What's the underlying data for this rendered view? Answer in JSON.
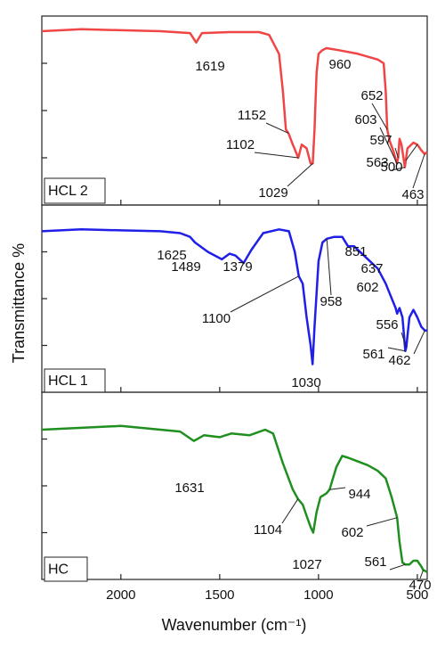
{
  "chart_data": [
    {
      "type": "line",
      "xlim": [
        2400,
        450
      ],
      "ylim": [
        0,
        100
      ],
      "yticks": [
        25,
        50,
        75
      ],
      "annotations": [
        1619,
        960,
        1152,
        652,
        603,
        1102,
        597,
        563,
        500,
        1029,
        463
      ],
      "x": [
        2400,
        2200,
        2000,
        1800,
        1650,
        1619,
        1590,
        1450,
        1300,
        1250,
        1200,
        1180,
        1165,
        1152,
        1130,
        1102,
        1085,
        1060,
        1040,
        1029,
        1020,
        1010,
        1000,
        980,
        960,
        900,
        800,
        700,
        670,
        660,
        652,
        640,
        620,
        603,
        597,
        590,
        580,
        563,
        550,
        520,
        500,
        480,
        463,
        450
      ],
      "series": [
        {
          "name": "HCL 2",
          "color": "#f04545",
          "values": [
            92,
            93,
            92.5,
            92,
            91,
            86,
            91,
            91.5,
            91.5,
            90,
            80,
            60,
            40,
            38,
            32,
            25,
            32,
            30,
            22,
            22,
            40,
            70,
            80,
            82,
            83,
            82,
            80,
            77,
            75,
            60,
            40,
            34,
            28,
            22,
            25,
            35,
            32,
            20,
            30,
            33,
            32,
            29,
            27,
            28
          ]
        }
      ]
    },
    {
      "type": "line",
      "xlim": [
        2400,
        450
      ],
      "ylim": [
        0,
        100
      ],
      "yticks": [
        25,
        50,
        75
      ],
      "ylabel": "Transmittance %",
      "annotations": [
        1625,
        1489,
        1379,
        958,
        851,
        637,
        602,
        1100,
        556,
        1030,
        561,
        462
      ],
      "x": [
        2400,
        2200,
        2000,
        1800,
        1700,
        1650,
        1625,
        1560,
        1489,
        1450,
        1420,
        1379,
        1340,
        1280,
        1200,
        1150,
        1120,
        1100,
        1080,
        1060,
        1040,
        1030,
        1020,
        1000,
        980,
        958,
        920,
        880,
        851,
        820,
        760,
        700,
        660,
        637,
        610,
        602,
        590,
        575,
        561,
        556,
        540,
        520,
        500,
        480,
        462,
        450
      ],
      "series": [
        {
          "name": "HCL 1",
          "color": "#1f1fe8",
          "values": [
            86,
            87,
            86.5,
            86,
            85,
            83,
            80,
            75,
            71,
            74,
            73,
            69,
            76,
            85,
            87,
            86,
            75,
            62,
            58,
            40,
            25,
            15,
            35,
            70,
            80,
            82,
            83,
            83,
            78,
            78,
            72,
            66,
            58,
            52,
            45,
            42,
            45,
            40,
            22,
            24,
            40,
            44,
            40,
            35,
            33,
            33
          ]
        }
      ]
    },
    {
      "type": "line",
      "xlim": [
        2400,
        450
      ],
      "ylim": [
        0,
        100
      ],
      "yticks": [
        25,
        50,
        75
      ],
      "xticks": [
        2000,
        1500,
        1000,
        500
      ],
      "xlabel": "Wavenumber (cm⁻¹)",
      "annotations": [
        1631,
        1104,
        944,
        1027,
        602,
        561,
        470
      ],
      "x": [
        2400,
        2200,
        2000,
        1800,
        1700,
        1631,
        1580,
        1500,
        1440,
        1350,
        1270,
        1230,
        1180,
        1130,
        1104,
        1080,
        1060,
        1040,
        1027,
        1010,
        990,
        960,
        944,
        910,
        880,
        850,
        800,
        750,
        700,
        660,
        630,
        602,
        590,
        575,
        561,
        540,
        520,
        500,
        480,
        470,
        450
      ],
      "series": [
        {
          "name": "HC",
          "color": "#1f8f1f",
          "values": [
            80,
            81,
            82,
            80,
            79,
            74,
            77,
            76,
            78,
            77,
            80,
            78,
            62,
            48,
            43,
            40,
            34,
            28,
            25,
            36,
            44,
            46,
            48,
            60,
            66,
            65,
            63,
            61,
            58,
            54,
            44,
            33,
            20,
            9,
            8,
            8,
            10,
            10,
            7,
            5,
            4
          ]
        }
      ]
    }
  ]
}
